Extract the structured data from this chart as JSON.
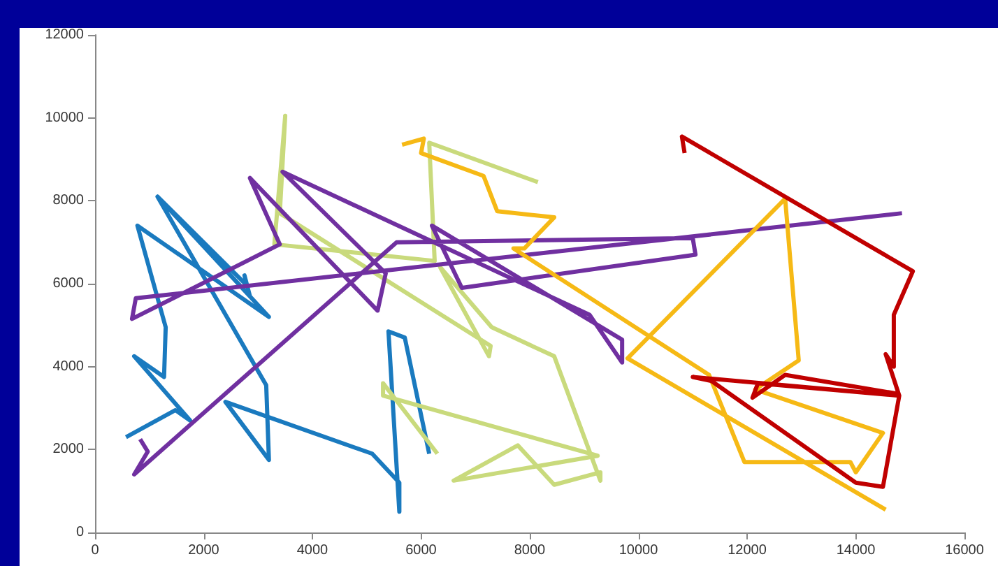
{
  "chart_data": {
    "type": "line",
    "xlim": [
      0,
      16000
    ],
    "ylim": [
      0,
      12000
    ],
    "xticks": [
      0,
      2000,
      4000,
      6000,
      8000,
      10000,
      12000,
      14000,
      16000
    ],
    "yticks": [
      0,
      2000,
      4000,
      6000,
      8000,
      10000,
      12000
    ],
    "series": [
      {
        "color": "#1a7abf",
        "x": [
          570,
          1480,
          1750,
          720,
          1270,
          1300,
          780,
          3200,
          1150,
          2800,
          2750,
          2850,
          1150,
          3150,
          3200,
          2400,
          5100,
          5600,
          5600,
          5400,
          5700,
          6150
        ],
        "values": [
          2300,
          2950,
          2700,
          4250,
          3750,
          4950,
          7400,
          5200,
          8100,
          5950,
          6200,
          5700,
          8100,
          3550,
          1750,
          3150,
          1900,
          1200,
          500,
          4850,
          4700,
          1900
        ]
      },
      {
        "color": "#c9da7c",
        "x": [
          8150,
          6150,
          6250,
          3300,
          3500,
          3400,
          7280,
          7250,
          6350,
          7300,
          8450,
          9300,
          9300,
          8450,
          7780,
          6600,
          9250,
          5300,
          5300,
          6300
        ],
        "values": [
          8450,
          9400,
          6550,
          6950,
          10050,
          7700,
          4500,
          4250,
          6400,
          4950,
          4250,
          1250,
          1450,
          1150,
          2100,
          1250,
          1850,
          3300,
          3600,
          1900
        ]
      },
      {
        "color": "#7030a0",
        "x": [
          830,
          970,
          720,
          5550,
          11000,
          11050,
          6750,
          6200,
          9700,
          9700,
          9100,
          3450,
          5350,
          5200,
          2850,
          3400,
          680,
          750,
          14850
        ],
        "values": [
          2250,
          1950,
          1400,
          7000,
          7100,
          6700,
          5900,
          7400,
          4650,
          4100,
          5250,
          8700,
          6250,
          5350,
          8550,
          6950,
          5150,
          5650,
          7700
        ]
      },
      {
        "color": "#f6b915",
        "x": [
          5650,
          6050,
          6000,
          7150,
          7400,
          8450,
          7900,
          7700,
          11300,
          11950,
          13900,
          14000,
          14500,
          12150,
          12950,
          12700,
          9800,
          14550
        ],
        "values": [
          9350,
          9500,
          9150,
          8600,
          7750,
          7600,
          6850,
          6850,
          3800,
          1700,
          1700,
          1450,
          2400,
          3450,
          4150,
          8050,
          4200,
          550
        ]
      },
      {
        "color": "#c00000",
        "x": [
          10850,
          10800,
          15050,
          14700,
          14700,
          14550,
          14800,
          14500,
          14000,
          11350,
          11000,
          14800,
          12200,
          12100,
          12700,
          14750
        ],
        "values": [
          9150,
          9550,
          6300,
          5250,
          4000,
          4300,
          3300,
          1100,
          1200,
          3650,
          3750,
          3300,
          3600,
          3250,
          3800,
          3350
        ]
      }
    ]
  }
}
